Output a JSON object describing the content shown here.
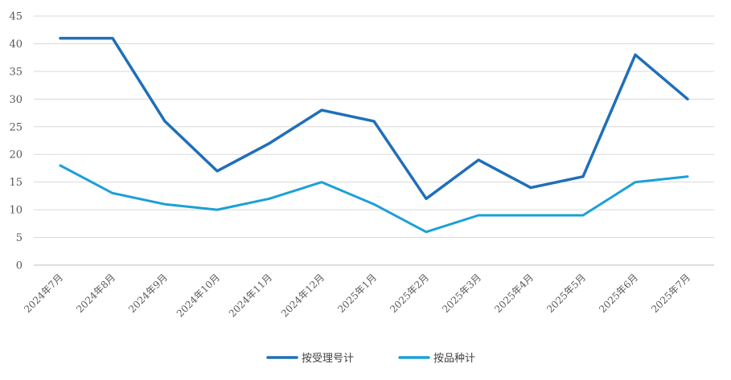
{
  "chart_data": {
    "type": "line",
    "categories": [
      "2024年7月",
      "2024年8月",
      "2024年9月",
      "2024年10月",
      "2024年11月",
      "2024年12月",
      "2025年1月",
      "2025年2月",
      "2025年3月",
      "2025年4月",
      "2025年5月",
      "2025年6月",
      "2025年7月"
    ],
    "series": [
      {
        "name": "按受理号计",
        "color": "#1F6FB9",
        "values": [
          41,
          41,
          26,
          17,
          22,
          28,
          26,
          12,
          19,
          14,
          16,
          38,
          30
        ]
      },
      {
        "name": "按品种计",
        "color": "#1BA0D8",
        "values": [
          18,
          13,
          11,
          10,
          12,
          15,
          11,
          6,
          9,
          9,
          9,
          15,
          16
        ]
      }
    ],
    "ylim": [
      0,
      45
    ],
    "yticks": [
      0,
      5,
      10,
      15,
      20,
      25,
      30,
      35,
      40,
      45
    ],
    "title": "",
    "xlabel": "",
    "ylabel": "",
    "grid": true,
    "legend_position": "bottom-center"
  }
}
